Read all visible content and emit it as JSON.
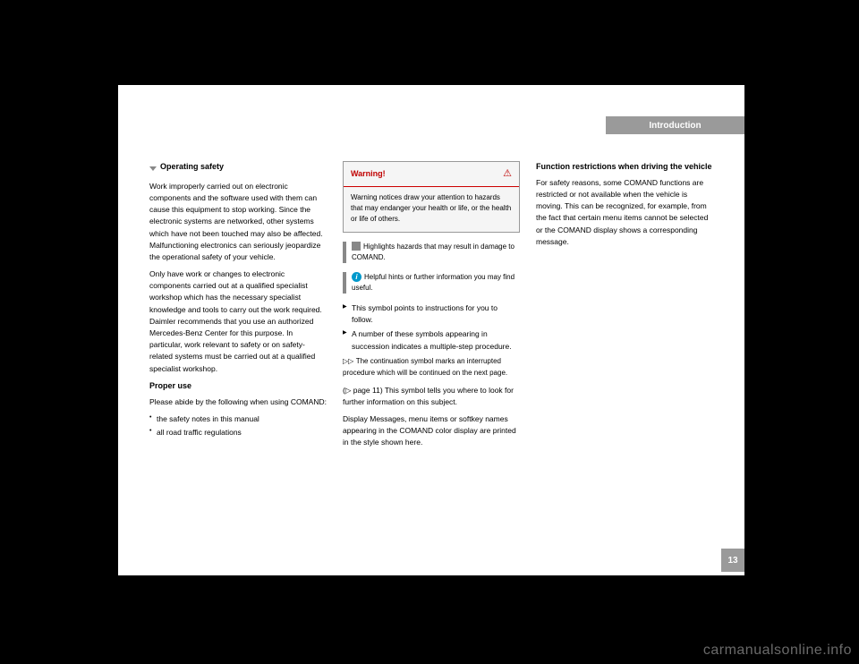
{
  "header": {
    "title": "Introduction"
  },
  "pageNumber": "13",
  "column1": {
    "heading1": "Operating safety",
    "para1": "Work improperly carried out on electronic components and the software used with them can cause this equipment to stop working. Since the electronic systems are networked, other systems which have not been touched may also be affected. Malfunctioning electronics can seriously jeopardize the operational safety of your vehicle.",
    "para2": "Only have work or changes to electronic components carried out at a qualified specialist workshop which has the necessary specialist knowledge and tools to carry out the work required. Daimler recommends that you use an authorized Mercedes-Benz Center for this purpose. In particular, work relevant to safety or on safety-related systems must be carried out at a qualified specialist workshop.",
    "heading2": "Proper use",
    "para3": "Please abide by the following when using COMAND:",
    "bullets": [
      "the safety notes in this manual",
      "all road traffic regulations"
    ]
  },
  "column2": {
    "warning": {
      "title": "Warning!",
      "body": "Warning notices draw your attention to hazards that may endanger your health or life, or the health or life of others."
    },
    "note1": "Highlights hazards that may result in damage to COMAND.",
    "note2": "Helpful hints or further information you may find useful.",
    "instruction1": "This symbol points to instructions for you to follow.",
    "instruction2": "A number of these symbols appearing in succession indicates a multiple-step procedure.",
    "contSymbol": "▷▷",
    "contText": "The continuation symbol marks an interrupted procedure which will be continued on the next page.",
    "pageRef": "(▷ page 11)",
    "pageRefText": " This symbol tells you where to look for further information on this subject.",
    "displayPrefix": "Display",
    "displayText": " Messages, menu items or softkey names appearing in the COMAND color display are printed in the style shown here."
  },
  "column3": {
    "heading1": "Function restrictions when driving the vehicle",
    "para1": "For safety reasons, some COMAND functions are restricted or not available when the vehicle is moving. This can be recognized, for example, from the fact that certain menu items cannot be selected or the COMAND display shows a corresponding message."
  },
  "watermark": "carmanualsonline.info"
}
